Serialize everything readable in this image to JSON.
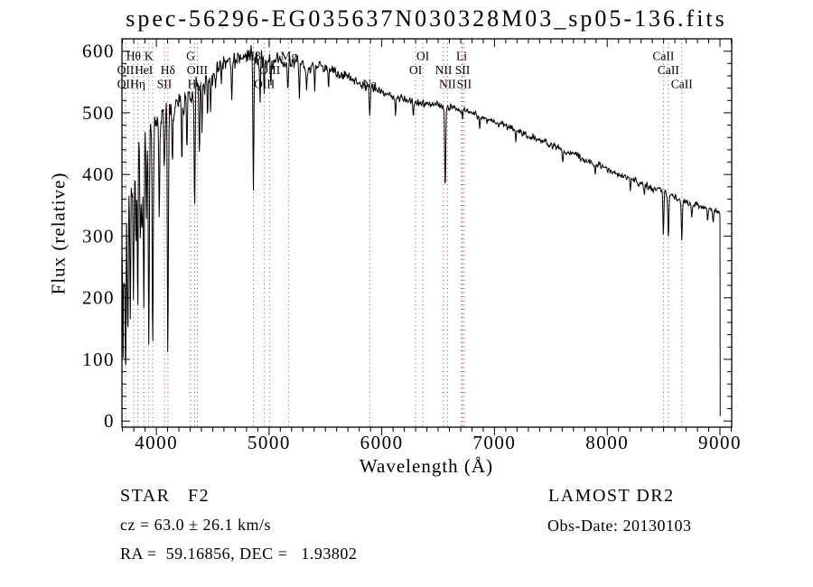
{
  "title": "spec-56296-EG035637N030328M03_sp05-136.fits",
  "footer": {
    "class_label": "STAR   F2",
    "cz": "cz = 63.0 ± 26.1 km/s",
    "radec": "RA =  59.16856, DEC =   1.93802",
    "survey": "LAMOST DR2",
    "obs_date": "Obs-Date: 20130103"
  },
  "colors": {
    "background": "#ffffff",
    "spectrum_line": "#000000",
    "marker_line": "#9c3b32",
    "axis": "#000000"
  },
  "chart_data": {
    "type": "line",
    "title": "spec-56296-EG035637N030328M03_sp05-136.fits",
    "xlabel": "Wavelength (Å)",
    "ylabel": "Flux (relative)",
    "xlim": [
      3695,
      9104
    ],
    "ylim": [
      -10,
      620
    ],
    "xticks": [
      4000,
      5000,
      6000,
      7000,
      8000,
      9000
    ],
    "yticks": [
      0,
      100,
      200,
      300,
      400,
      500,
      600
    ],
    "minor_x_step": 100,
    "minor_y_step": 20,
    "grid": false,
    "line_marker_wavelengths": [
      3727,
      3798,
      3835,
      3889,
      3933,
      3968,
      4072,
      4102,
      4304,
      4340,
      4363,
      4861,
      4959,
      5007,
      5175,
      5893,
      6300,
      6364,
      6548,
      6583,
      6708,
      6716,
      6731,
      8498,
      8542,
      8662
    ],
    "spectral_labels": [
      {
        "text": "Hθ",
        "wavelength": 3798,
        "row": 1
      },
      {
        "text": "K",
        "wavelength": 3933,
        "row": 1
      },
      {
        "text": "G",
        "wavelength": 4304,
        "row": 1
      },
      {
        "text": "Hβ",
        "wavelength": 4861,
        "row": 1
      },
      {
        "text": "Mg",
        "wavelength": 5175,
        "row": 1
      },
      {
        "text": "OI",
        "wavelength": 6364,
        "row": 1
      },
      {
        "text": "Li",
        "wavelength": 6708,
        "row": 1
      },
      {
        "text": "CaII",
        "wavelength": 8498,
        "row": 1
      },
      {
        "text": "OII",
        "wavelength": 3727,
        "row": 2
      },
      {
        "text": "HeI",
        "wavelength": 3889,
        "row": 2
      },
      {
        "text": "Hδ",
        "wavelength": 4102,
        "row": 2
      },
      {
        "text": "OIII",
        "wavelength": 4363,
        "row": 2
      },
      {
        "text": "OIII",
        "wavelength": 5007,
        "row": 2
      },
      {
        "text": "OI",
        "wavelength": 6300,
        "row": 2
      },
      {
        "text": "NII",
        "wavelength": 6548,
        "row": 2
      },
      {
        "text": "SII",
        "wavelength": 6716,
        "row": 2
      },
      {
        "text": "CaII",
        "wavelength": 8542,
        "row": 2
      },
      {
        "text": "OII",
        "wavelength": 3727,
        "row": 3
      },
      {
        "text": "Hη",
        "wavelength": 3835,
        "row": 3
      },
      {
        "text": "SII",
        "wavelength": 4072,
        "row": 3
      },
      {
        "text": "Hγ",
        "wavelength": 4340,
        "row": 3
      },
      {
        "text": "OIII",
        "wavelength": 4959,
        "row": 3
      },
      {
        "text": "Na",
        "wavelength": 5893,
        "row": 3
      },
      {
        "text": "NII",
        "wavelength": 6583,
        "row": 3
      },
      {
        "text": "SII",
        "wavelength": 6731,
        "row": 3
      },
      {
        "text": "CaII",
        "wavelength": 8662,
        "row": 3
      }
    ],
    "continuum": [
      [
        3695,
        255
      ],
      [
        3720,
        300
      ],
      [
        3760,
        360
      ],
      [
        3800,
        408
      ],
      [
        3840,
        438
      ],
      [
        3880,
        458
      ],
      [
        3920,
        470
      ],
      [
        3960,
        478
      ],
      [
        4000,
        487
      ],
      [
        4060,
        498
      ],
      [
        4120,
        505
      ],
      [
        4200,
        514
      ],
      [
        4300,
        528
      ],
      [
        4400,
        547
      ],
      [
        4500,
        562
      ],
      [
        4600,
        577
      ],
      [
        4700,
        587
      ],
      [
        4800,
        592
      ],
      [
        4900,
        588
      ],
      [
        5000,
        583
      ],
      [
        5100,
        582
      ],
      [
        5180,
        578
      ],
      [
        5260,
        582
      ],
      [
        5350,
        572
      ],
      [
        5450,
        575
      ],
      [
        5550,
        569
      ],
      [
        5650,
        561
      ],
      [
        5750,
        552
      ],
      [
        5850,
        545
      ],
      [
        5950,
        538
      ],
      [
        6050,
        531
      ],
      [
        6150,
        524
      ],
      [
        6250,
        519
      ],
      [
        6350,
        515
      ],
      [
        6450,
        513
      ],
      [
        6550,
        511
      ],
      [
        6650,
        507
      ],
      [
        6750,
        503
      ],
      [
        6850,
        497
      ],
      [
        6950,
        490
      ],
      [
        7100,
        479
      ],
      [
        7250,
        467
      ],
      [
        7400,
        456
      ],
      [
        7550,
        444
      ],
      [
        7700,
        432
      ],
      [
        7850,
        420
      ],
      [
        8000,
        408
      ],
      [
        8150,
        396
      ],
      [
        8300,
        385
      ],
      [
        8450,
        375
      ],
      [
        8550,
        367
      ],
      [
        8650,
        359
      ],
      [
        8750,
        352
      ],
      [
        8850,
        347
      ],
      [
        8950,
        341
      ],
      [
        9000,
        336
      ]
    ],
    "absorption_lines": [
      [
        3706,
        185,
        4
      ],
      [
        3727,
        148,
        4
      ],
      [
        3746,
        128,
        4
      ],
      [
        3770,
        215,
        4
      ],
      [
        3798,
        182,
        4
      ],
      [
        3820,
        262,
        4
      ],
      [
        3835,
        165,
        4
      ],
      [
        3860,
        290,
        4
      ],
      [
        3874,
        328,
        4
      ],
      [
        3889,
        158,
        4
      ],
      [
        3912,
        318,
        4
      ],
      [
        3933,
        130,
        4.5
      ],
      [
        3968,
        120,
        4.5
      ],
      [
        4026,
        330,
        4
      ],
      [
        4072,
        398,
        4
      ],
      [
        4102,
        116,
        4.5
      ],
      [
        4144,
        408,
        4
      ],
      [
        4227,
        432,
        3.5
      ],
      [
        4271,
        448,
        3.5
      ],
      [
        4340,
        356,
        4.5
      ],
      [
        4383,
        438,
        4
      ],
      [
        4405,
        465,
        3.5
      ],
      [
        4455,
        496,
        3.5
      ],
      [
        4481,
        505,
        3.5
      ],
      [
        4668,
        536,
        3.5
      ],
      [
        4861,
        380,
        4.5
      ],
      [
        4920,
        520,
        3.5
      ],
      [
        4957,
        540,
        3.5
      ],
      [
        5015,
        543,
        3.5
      ],
      [
        5167,
        532,
        4
      ],
      [
        5270,
        534,
        4
      ],
      [
        5332,
        538,
        3.5
      ],
      [
        5405,
        539,
        3.5
      ],
      [
        5528,
        542,
        3.5
      ],
      [
        5893,
        492,
        4.5
      ],
      [
        6122,
        500,
        3.5
      ],
      [
        6280,
        493,
        3.5
      ],
      [
        6563,
        376,
        4.5
      ],
      [
        6717,
        490,
        3.5
      ],
      [
        6870,
        474,
        4.5
      ],
      [
        7190,
        450,
        4
      ],
      [
        7605,
        419,
        5
      ],
      [
        7893,
        400,
        4
      ],
      [
        8205,
        376,
        4.5
      ],
      [
        8330,
        366,
        4
      ],
      [
        8498,
        306,
        4
      ],
      [
        8542,
        298,
        4.5
      ],
      [
        8662,
        294,
        4.5
      ],
      [
        8750,
        331,
        4
      ],
      [
        8890,
        324,
        4
      ],
      [
        8940,
        322,
        4
      ]
    ],
    "noise_sigma": [
      [
        3695,
        62
      ],
      [
        3750,
        55
      ],
      [
        3810,
        45
      ],
      [
        3870,
        34
      ],
      [
        3930,
        26
      ],
      [
        3990,
        21
      ],
      [
        4060,
        18
      ],
      [
        4160,
        15
      ],
      [
        4300,
        13
      ],
      [
        4500,
        11
      ],
      [
        4800,
        9.5
      ],
      [
        5200,
        7.5
      ],
      [
        5600,
        6
      ],
      [
        6200,
        4.5
      ],
      [
        6900,
        4
      ],
      [
        7600,
        3.5
      ],
      [
        9100,
        3.2
      ]
    ],
    "end_drop": {
      "wavelength": 9000,
      "flux_to": 8
    },
    "legend": null
  }
}
